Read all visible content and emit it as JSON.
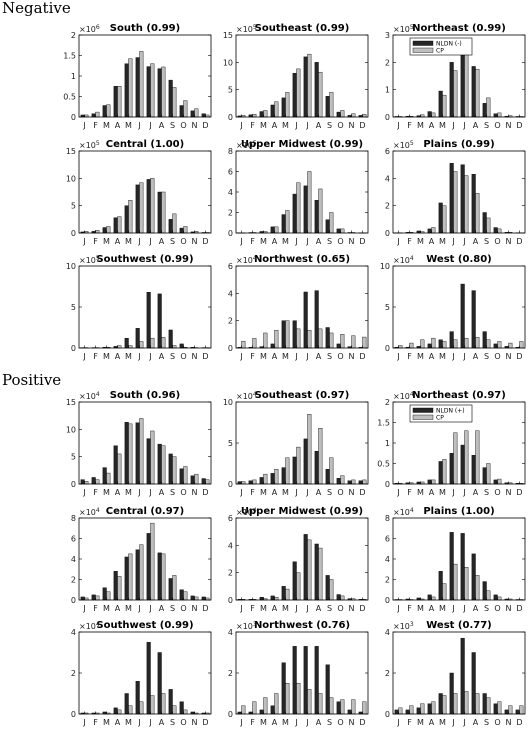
{
  "sections": [
    "Negative",
    "Positive"
  ],
  "months": [
    "J",
    "F",
    "M",
    "A",
    "M",
    "J",
    "J",
    "A",
    "S",
    "O",
    "N",
    "D"
  ],
  "legend_negative": [
    "NLDN (-)",
    "CP"
  ],
  "legend_positive": [
    "NLDN (+)",
    "CP"
  ],
  "colors": {
    "nldn": "#262626",
    "cp": "#bfbfbf",
    "edge": "#000000"
  },
  "chart_data": [
    {
      "type": "bar",
      "section": "Negative",
      "title": "South (0.99)",
      "multiplier": "×10",
      "exp": "6",
      "ylim": [
        0,
        2
      ],
      "yticks": [
        "0",
        "0.5",
        "1",
        "1.5",
        "2"
      ],
      "categories": [
        "J",
        "F",
        "M",
        "A",
        "M",
        "J",
        "J",
        "A",
        "S",
        "O",
        "N",
        "D"
      ],
      "series": [
        {
          "name": "NLDN (-)",
          "values": [
            0.05,
            0.08,
            0.28,
            0.75,
            1.3,
            1.45,
            1.23,
            1.18,
            0.9,
            0.28,
            0.15,
            0.08
          ]
        },
        {
          "name": "CP",
          "values": [
            0.05,
            0.12,
            0.3,
            0.75,
            1.42,
            1.6,
            1.3,
            1.22,
            0.72,
            0.4,
            0.2,
            0.05
          ]
        }
      ]
    },
    {
      "type": "bar",
      "section": "Negative",
      "title": "Southeast (0.99)",
      "multiplier": "×10",
      "exp": "5",
      "ylim": [
        0,
        15
      ],
      "yticks": [
        "0",
        "5",
        "10",
        "15"
      ],
      "categories": [
        "J",
        "F",
        "M",
        "A",
        "M",
        "J",
        "J",
        "A",
        "S",
        "O",
        "N",
        "D"
      ],
      "series": [
        {
          "name": "NLDN (-)",
          "values": [
            0.2,
            0.4,
            1.0,
            2.2,
            3.5,
            8,
            11,
            10,
            3.8,
            0.9,
            0.3,
            0.3
          ]
        },
        {
          "name": "CP",
          "values": [
            0.3,
            0.5,
            1.2,
            2.8,
            4.5,
            8.8,
            11.5,
            8.2,
            4.5,
            1.2,
            0.6,
            0.5
          ]
        }
      ]
    },
    {
      "type": "bar",
      "section": "Negative",
      "title": "Northeast (0.99)",
      "multiplier": "×10",
      "exp": "5",
      "ylim": [
        0,
        3
      ],
      "yticks": [
        "0",
        "1",
        "2",
        "3"
      ],
      "categories": [
        "J",
        "F",
        "M",
        "A",
        "M",
        "J",
        "J",
        "A",
        "S",
        "O",
        "N",
        "D"
      ],
      "series": [
        {
          "name": "NLDN (-)",
          "values": [
            0.02,
            0.03,
            0.05,
            0.2,
            0.95,
            2.0,
            2.7,
            1.85,
            0.5,
            0.12,
            0.03,
            0.02
          ]
        },
        {
          "name": "CP",
          "values": [
            0.02,
            0.03,
            0.08,
            0.15,
            0.8,
            1.7,
            2.3,
            1.75,
            0.7,
            0.15,
            0.05,
            0.02
          ]
        }
      ]
    },
    {
      "type": "bar",
      "section": "Negative",
      "title": "Central (1.00)",
      "multiplier": "×10",
      "exp": "5",
      "ylim": [
        0,
        15
      ],
      "yticks": [
        "0",
        "5",
        "10",
        "15"
      ],
      "categories": [
        "J",
        "F",
        "M",
        "A",
        "M",
        "J",
        "J",
        "A",
        "S",
        "O",
        "N",
        "D"
      ],
      "series": [
        {
          "name": "NLDN (-)",
          "values": [
            0.2,
            0.3,
            1.0,
            2.8,
            5.0,
            8.8,
            9.8,
            7.5,
            2.5,
            0.9,
            0.2,
            0.1
          ]
        },
        {
          "name": "CP",
          "values": [
            0.3,
            0.5,
            1.2,
            3.0,
            6.0,
            9.2,
            10,
            7.5,
            3.5,
            1.2,
            0.3,
            0.1
          ]
        }
      ]
    },
    {
      "type": "bar",
      "section": "Negative",
      "title": "Upper Midwest (0.99)",
      "multiplier": "×10",
      "exp": "5",
      "ylim": [
        0,
        8
      ],
      "yticks": [
        "0",
        "2",
        "4",
        "6",
        "8"
      ],
      "categories": [
        "J",
        "F",
        "M",
        "A",
        "M",
        "J",
        "J",
        "A",
        "S",
        "O",
        "N",
        "D"
      ],
      "series": [
        {
          "name": "NLDN (-)",
          "values": [
            0.02,
            0.05,
            0.15,
            0.6,
            1.8,
            3.8,
            4.6,
            3.2,
            1.3,
            0.4,
            0.05,
            0.02
          ]
        },
        {
          "name": "CP",
          "values": [
            0.02,
            0.05,
            0.15,
            0.6,
            2.2,
            4.9,
            6.0,
            4.3,
            2.0,
            0.4,
            0.05,
            0.02
          ]
        }
      ]
    },
    {
      "type": "bar",
      "section": "Negative",
      "title": "Plains (0.99)",
      "multiplier": "×10",
      "exp": "5",
      "ylim": [
        0,
        6
      ],
      "yticks": [
        "0",
        "2",
        "4",
        "6"
      ],
      "categories": [
        "J",
        "F",
        "M",
        "A",
        "M",
        "J",
        "J",
        "A",
        "S",
        "O",
        "N",
        "D"
      ],
      "series": [
        {
          "name": "NLDN (-)",
          "values": [
            0.02,
            0.05,
            0.15,
            0.3,
            2.2,
            5.1,
            5.0,
            4.3,
            1.5,
            0.4,
            0.05,
            0.02
          ]
        },
        {
          "name": "CP",
          "values": [
            0.02,
            0.05,
            0.1,
            0.4,
            2.0,
            4.5,
            4.2,
            2.9,
            1.1,
            0.3,
            0.05,
            0.02
          ]
        }
      ]
    },
    {
      "type": "bar",
      "section": "Negative",
      "title": "Southwest (0.99)",
      "multiplier": "×10",
      "exp": "5",
      "ylim": [
        0,
        10
      ],
      "yticks": [
        "0",
        "5",
        "10"
      ],
      "categories": [
        "J",
        "F",
        "M",
        "A",
        "M",
        "J",
        "J",
        "A",
        "S",
        "O",
        "N",
        "D"
      ],
      "series": [
        {
          "name": "NLDN (-)",
          "values": [
            0.05,
            0.05,
            0.1,
            0.2,
            1.2,
            2.4,
            6.8,
            6.6,
            2.2,
            0.5,
            0.1,
            0.05
          ]
        },
        {
          "name": "CP",
          "values": [
            0.05,
            0.05,
            0.1,
            0.3,
            0.3,
            0.8,
            1.2,
            1.3,
            0.3,
            0.1,
            0.05,
            0.05
          ]
        }
      ]
    },
    {
      "type": "bar",
      "section": "Negative",
      "title": "Northwest (0.65)",
      "multiplier": "×10",
      "exp": "4",
      "ylim": [
        0,
        6
      ],
      "yticks": [
        "0",
        "2",
        "4",
        "6"
      ],
      "categories": [
        "J",
        "F",
        "M",
        "A",
        "M",
        "J",
        "J",
        "A",
        "S",
        "O",
        "N",
        "D"
      ],
      "series": [
        {
          "name": "NLDN (-)",
          "values": [
            0.05,
            0.05,
            0.1,
            0.3,
            2.0,
            2.0,
            4.1,
            4.2,
            1.5,
            0.3,
            0.1,
            0.05
          ]
        },
        {
          "name": "CP",
          "values": [
            0.5,
            0.7,
            1.1,
            1.3,
            2.0,
            1.4,
            1.3,
            1.4,
            1.1,
            1.0,
            0.9,
            0.8
          ]
        }
      ]
    },
    {
      "type": "bar",
      "section": "Negative",
      "title": "West (0.80)",
      "multiplier": "×10",
      "exp": "4",
      "ylim": [
        0,
        10
      ],
      "yticks": [
        "0",
        "5",
        "10"
      ],
      "categories": [
        "J",
        "F",
        "M",
        "A",
        "M",
        "J",
        "J",
        "A",
        "S",
        "O",
        "N",
        "D"
      ],
      "series": [
        {
          "name": "NLDN (-)",
          "values": [
            0.1,
            0.1,
            0.2,
            0.5,
            1.0,
            2.0,
            7.8,
            7.0,
            2.0,
            0.5,
            0.2,
            0.1
          ]
        },
        {
          "name": "CP",
          "values": [
            0.3,
            0.6,
            1.0,
            1.2,
            0.8,
            1.0,
            1.2,
            1.3,
            1.0,
            0.8,
            0.6,
            0.8
          ]
        }
      ]
    },
    {
      "type": "bar",
      "section": "Positive",
      "title": "South (0.96)",
      "multiplier": "×10",
      "exp": "4",
      "ylim": [
        0,
        15
      ],
      "yticks": [
        "0",
        "5",
        "10",
        "15"
      ],
      "categories": [
        "J",
        "F",
        "M",
        "A",
        "M",
        "J",
        "J",
        "A",
        "S",
        "O",
        "N",
        "D"
      ],
      "series": [
        {
          "name": "NLDN (+)",
          "values": [
            0.8,
            1.2,
            3.0,
            7.0,
            11.3,
            11.2,
            8.3,
            7.3,
            5.5,
            2.8,
            1.5,
            1.0
          ]
        },
        {
          "name": "CP",
          "values": [
            0.5,
            0.8,
            2.0,
            5.5,
            11.0,
            12.0,
            9.7,
            7.0,
            5.0,
            3.2,
            1.8,
            0.8
          ]
        }
      ]
    },
    {
      "type": "bar",
      "section": "Positive",
      "title": "Southeast (0.97)",
      "multiplier": "×10",
      "exp": "4",
      "ylim": [
        0,
        10
      ],
      "yticks": [
        "0",
        "5",
        "10"
      ],
      "categories": [
        "J",
        "F",
        "M",
        "A",
        "M",
        "J",
        "J",
        "A",
        "S",
        "O",
        "N",
        "D"
      ],
      "series": [
        {
          "name": "NLDN (+)",
          "values": [
            0.3,
            0.4,
            0.8,
            1.3,
            2.0,
            3.3,
            5.5,
            4.0,
            1.8,
            0.7,
            0.4,
            0.4
          ]
        },
        {
          "name": "CP",
          "values": [
            0.3,
            0.5,
            1.2,
            1.8,
            3.2,
            4.5,
            8.5,
            6.8,
            3.2,
            1.0,
            0.5,
            0.5
          ]
        }
      ]
    },
    {
      "type": "bar",
      "section": "Positive",
      "title": "Northeast (0.97)",
      "multiplier": "×10",
      "exp": "4",
      "ylim": [
        0,
        2
      ],
      "yticks": [
        "0",
        "0.5",
        "1",
        "1.5",
        "2"
      ],
      "categories": [
        "J",
        "F",
        "M",
        "A",
        "M",
        "J",
        "J",
        "A",
        "S",
        "O",
        "N",
        "D"
      ],
      "series": [
        {
          "name": "NLDN (+)",
          "values": [
            0.02,
            0.03,
            0.05,
            0.1,
            0.55,
            0.75,
            0.95,
            0.7,
            0.4,
            0.1,
            0.03,
            0.02
          ]
        },
        {
          "name": "CP",
          "values": [
            0.02,
            0.03,
            0.05,
            0.1,
            0.6,
            1.25,
            1.3,
            1.3,
            0.5,
            0.12,
            0.03,
            0.02
          ]
        }
      ]
    },
    {
      "type": "bar",
      "section": "Positive",
      "title": "Central (0.97)",
      "multiplier": "×10",
      "exp": "4",
      "ylim": [
        0,
        8
      ],
      "yticks": [
        "0",
        "2",
        "4",
        "6",
        "8"
      ],
      "categories": [
        "J",
        "F",
        "M",
        "A",
        "M",
        "J",
        "J",
        "A",
        "S",
        "O",
        "N",
        "D"
      ],
      "series": [
        {
          "name": "NLDN (+)",
          "values": [
            0.3,
            0.5,
            1.2,
            2.8,
            4.2,
            4.9,
            6.5,
            4.6,
            2.1,
            1.0,
            0.4,
            0.3
          ]
        },
        {
          "name": "CP",
          "values": [
            0.2,
            0.4,
            0.8,
            2.3,
            4.5,
            5.4,
            7.5,
            4.5,
            2.4,
            0.8,
            0.3,
            0.2
          ]
        }
      ]
    },
    {
      "type": "bar",
      "section": "Positive",
      "title": "Upper Midwest (0.99)",
      "multiplier": "×10",
      "exp": "4",
      "ylim": [
        0,
        6
      ],
      "yticks": [
        "0",
        "2",
        "4",
        "6"
      ],
      "categories": [
        "J",
        "F",
        "M",
        "A",
        "M",
        "J",
        "J",
        "A",
        "S",
        "O",
        "N",
        "D"
      ],
      "series": [
        {
          "name": "NLDN (+)",
          "values": [
            0.05,
            0.05,
            0.2,
            0.3,
            1.0,
            2.8,
            4.8,
            4.1,
            1.8,
            0.4,
            0.1,
            0.05
          ]
        },
        {
          "name": "CP",
          "values": [
            0.05,
            0.05,
            0.1,
            0.2,
            0.8,
            2.0,
            4.4,
            3.8,
            1.5,
            0.3,
            0.1,
            0.05
          ]
        }
      ]
    },
    {
      "type": "bar",
      "section": "Positive",
      "title": "Plains (1.00)",
      "multiplier": "×10",
      "exp": "4",
      "ylim": [
        0,
        8
      ],
      "yticks": [
        "0",
        "2",
        "4",
        "6",
        "8"
      ],
      "categories": [
        "J",
        "F",
        "M",
        "A",
        "M",
        "J",
        "J",
        "A",
        "S",
        "O",
        "N",
        "D"
      ],
      "series": [
        {
          "name": "NLDN (+)",
          "values": [
            0.05,
            0.1,
            0.2,
            0.5,
            2.8,
            6.6,
            6.5,
            4.5,
            1.8,
            0.5,
            0.1,
            0.05
          ]
        },
        {
          "name": "CP",
          "values": [
            0.05,
            0.05,
            0.1,
            0.3,
            1.6,
            3.5,
            3.2,
            2.4,
            0.9,
            0.3,
            0.1,
            0.05
          ]
        }
      ]
    },
    {
      "type": "bar",
      "section": "Positive",
      "title": "Southwest (0.99)",
      "multiplier": "×10",
      "exp": "4",
      "ylim": [
        0,
        4
      ],
      "yticks": [
        "0",
        "2",
        "4"
      ],
      "categories": [
        "J",
        "F",
        "M",
        "A",
        "M",
        "J",
        "J",
        "A",
        "S",
        "O",
        "N",
        "D"
      ],
      "series": [
        {
          "name": "NLDN (+)",
          "values": [
            0.05,
            0.05,
            0.1,
            0.3,
            1.0,
            1.6,
            3.5,
            3.0,
            1.2,
            0.6,
            0.1,
            0.05
          ]
        },
        {
          "name": "CP",
          "values": [
            0.05,
            0.05,
            0.05,
            0.2,
            0.4,
            0.6,
            0.9,
            1.0,
            0.4,
            0.2,
            0.05,
            0.05
          ]
        }
      ]
    },
    {
      "type": "bar",
      "section": "Positive",
      "title": "Northwest (0.76)",
      "multiplier": "×10",
      "exp": "3",
      "ylim": [
        0,
        4
      ],
      "yticks": [
        "0",
        "2",
        "4"
      ],
      "categories": [
        "J",
        "F",
        "M",
        "A",
        "M",
        "J",
        "J",
        "A",
        "S",
        "O",
        "N",
        "D"
      ],
      "series": [
        {
          "name": "NLDN (+)",
          "values": [
            0.1,
            0.1,
            0.2,
            0.4,
            2.5,
            3.3,
            3.3,
            3.3,
            2.4,
            0.6,
            0.2,
            0.1
          ]
        },
        {
          "name": "CP",
          "values": [
            0.4,
            0.6,
            0.8,
            1.0,
            1.5,
            1.5,
            1.2,
            1.0,
            0.8,
            0.7,
            0.7,
            0.6
          ]
        }
      ]
    },
    {
      "type": "bar",
      "section": "Positive",
      "title": "West (0.77)",
      "multiplier": "×10",
      "exp": "3",
      "ylim": [
        0,
        4
      ],
      "yticks": [
        "0",
        "2",
        "4"
      ],
      "categories": [
        "J",
        "F",
        "M",
        "A",
        "M",
        "J",
        "J",
        "A",
        "S",
        "O",
        "N",
        "D"
      ],
      "series": [
        {
          "name": "NLDN (+)",
          "values": [
            0.2,
            0.2,
            0.3,
            0.5,
            1.0,
            2.0,
            3.7,
            3.0,
            1.0,
            0.5,
            0.2,
            0.2
          ]
        },
        {
          "name": "CP",
          "values": [
            0.3,
            0.4,
            0.5,
            0.6,
            0.9,
            1.0,
            1.1,
            1.0,
            0.8,
            0.6,
            0.4,
            0.4
          ]
        }
      ]
    }
  ]
}
